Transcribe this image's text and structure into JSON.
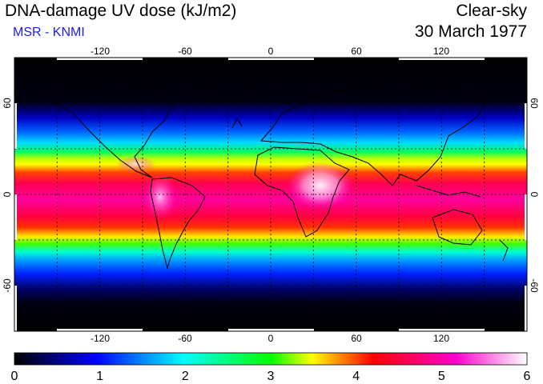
{
  "header": {
    "title": "DNA-damage UV dose (kJ/m2)",
    "subtitle": "MSR - KNMI",
    "sky_condition": "Clear-sky",
    "date": "30 March 1977"
  },
  "map": {
    "projection": "equirectangular",
    "lon_range": [
      -180,
      180
    ],
    "lat_range": [
      -90,
      90
    ],
    "lon_ticks": [
      "-120",
      "-60",
      "0",
      "60",
      "120"
    ],
    "lat_ticks": [
      "60",
      "0",
      "-60"
    ],
    "gridlines": "dotted every 30 degrees",
    "coastlines": true
  },
  "colorbar": {
    "range": [
      0,
      6
    ],
    "labels": [
      "0",
      "1",
      "2",
      "3",
      "4",
      "5",
      "6"
    ],
    "colors": [
      "#000000",
      "#0000ff",
      "#00ffff",
      "#00ff00",
      "#ffff00",
      "#ff0000",
      "#ff00cc",
      "#ffffff"
    ]
  }
}
